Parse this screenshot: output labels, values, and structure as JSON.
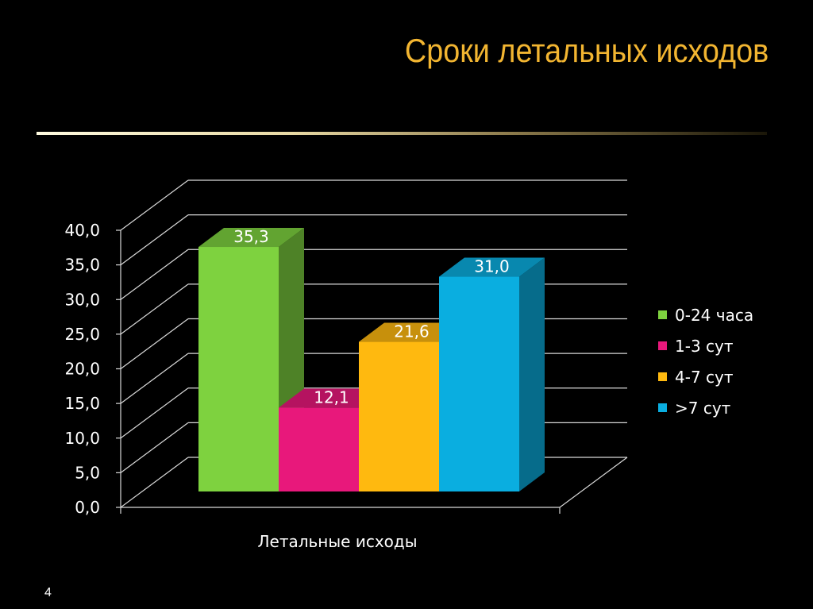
{
  "slide": {
    "title": "Сроки летальных исходов",
    "page_number": "4"
  },
  "chart_data": {
    "type": "bar",
    "x": "Летальные исходы",
    "xlabel": "Летальные исходы",
    "ylim": [
      0,
      40
    ],
    "y_ticks": [
      "0,0",
      "5,0",
      "10,0",
      "15,0",
      "20,0",
      "25,0",
      "30,0",
      "35,0",
      "40,0"
    ],
    "grid": true,
    "legend_position": "right",
    "series": [
      {
        "name": "0-24 часа",
        "value": 35.3,
        "label": "35,3",
        "color": "#7ed23f"
      },
      {
        "name": "1-3 сут",
        "value": 12.1,
        "label": "12,1",
        "color": "#e8187b"
      },
      {
        "name": "4-7 сут",
        "value": 21.6,
        "label": "21,6",
        "color": "#ffb90f"
      },
      {
        "name": ">7 сут",
        "value": 31.0,
        "label": "31,0",
        "color": "#0aaee0"
      }
    ]
  }
}
